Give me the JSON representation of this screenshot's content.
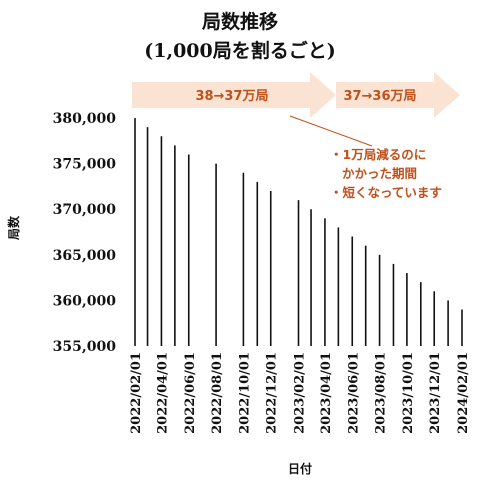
{
  "chart_data": {
    "type": "bar",
    "title": [
      "局数推移",
      "(1,000局を割るごと)"
    ],
    "xlabel": "日付",
    "ylabel": "局数",
    "ylim": [
      355000,
      380000
    ],
    "yticks": [
      "355,000",
      "360,000",
      "365,000",
      "370,000",
      "375,000",
      "380,000"
    ],
    "ytick_values": [
      355000,
      360000,
      365000,
      370000,
      375000,
      380000
    ],
    "xtick_labels": [
      "2022/02/01",
      "2022/04/01",
      "2022/06/01",
      "2022/08/01",
      "2022/10/01",
      "2022/12/01",
      "2023/02/01",
      "2023/04/01",
      "2023/06/01",
      "2023/08/01",
      "2023/10/01",
      "2023/12/01",
      "2024/02/01"
    ],
    "x": [
      "2022/02/01",
      "2022/03/01",
      "2022/04/01",
      "2022/05/01",
      "2022/06/01",
      "2022/08/01",
      "2022/10/01",
      "2022/11/01",
      "2022/12/01",
      "2023/02/01",
      "2023/03/01",
      "2023/04/01",
      "2023/05/01",
      "2023/06/01",
      "2023/07/01",
      "2023/08/01",
      "2023/09/01",
      "2023/10/01",
      "2023/11/01",
      "2023/12/01",
      "2024/01/01",
      "2024/02/01"
    ],
    "values": [
      380000,
      379000,
      378000,
      377000,
      376000,
      375000,
      374000,
      373000,
      372000,
      371000,
      370000,
      369000,
      368000,
      367000,
      366000,
      365000,
      364000,
      363000,
      362000,
      361000,
      360000,
      359000
    ],
    "annotations": {
      "arrows": [
        "38→37万局",
        "37→36万局"
      ],
      "note": [
        "・1万局減るのに",
        "かかった期間",
        "・短くなっています"
      ]
    },
    "colors": {
      "bar": "#111111",
      "arrow_fill": "#fbe3d3",
      "arrow_text": "#c0501c"
    }
  }
}
